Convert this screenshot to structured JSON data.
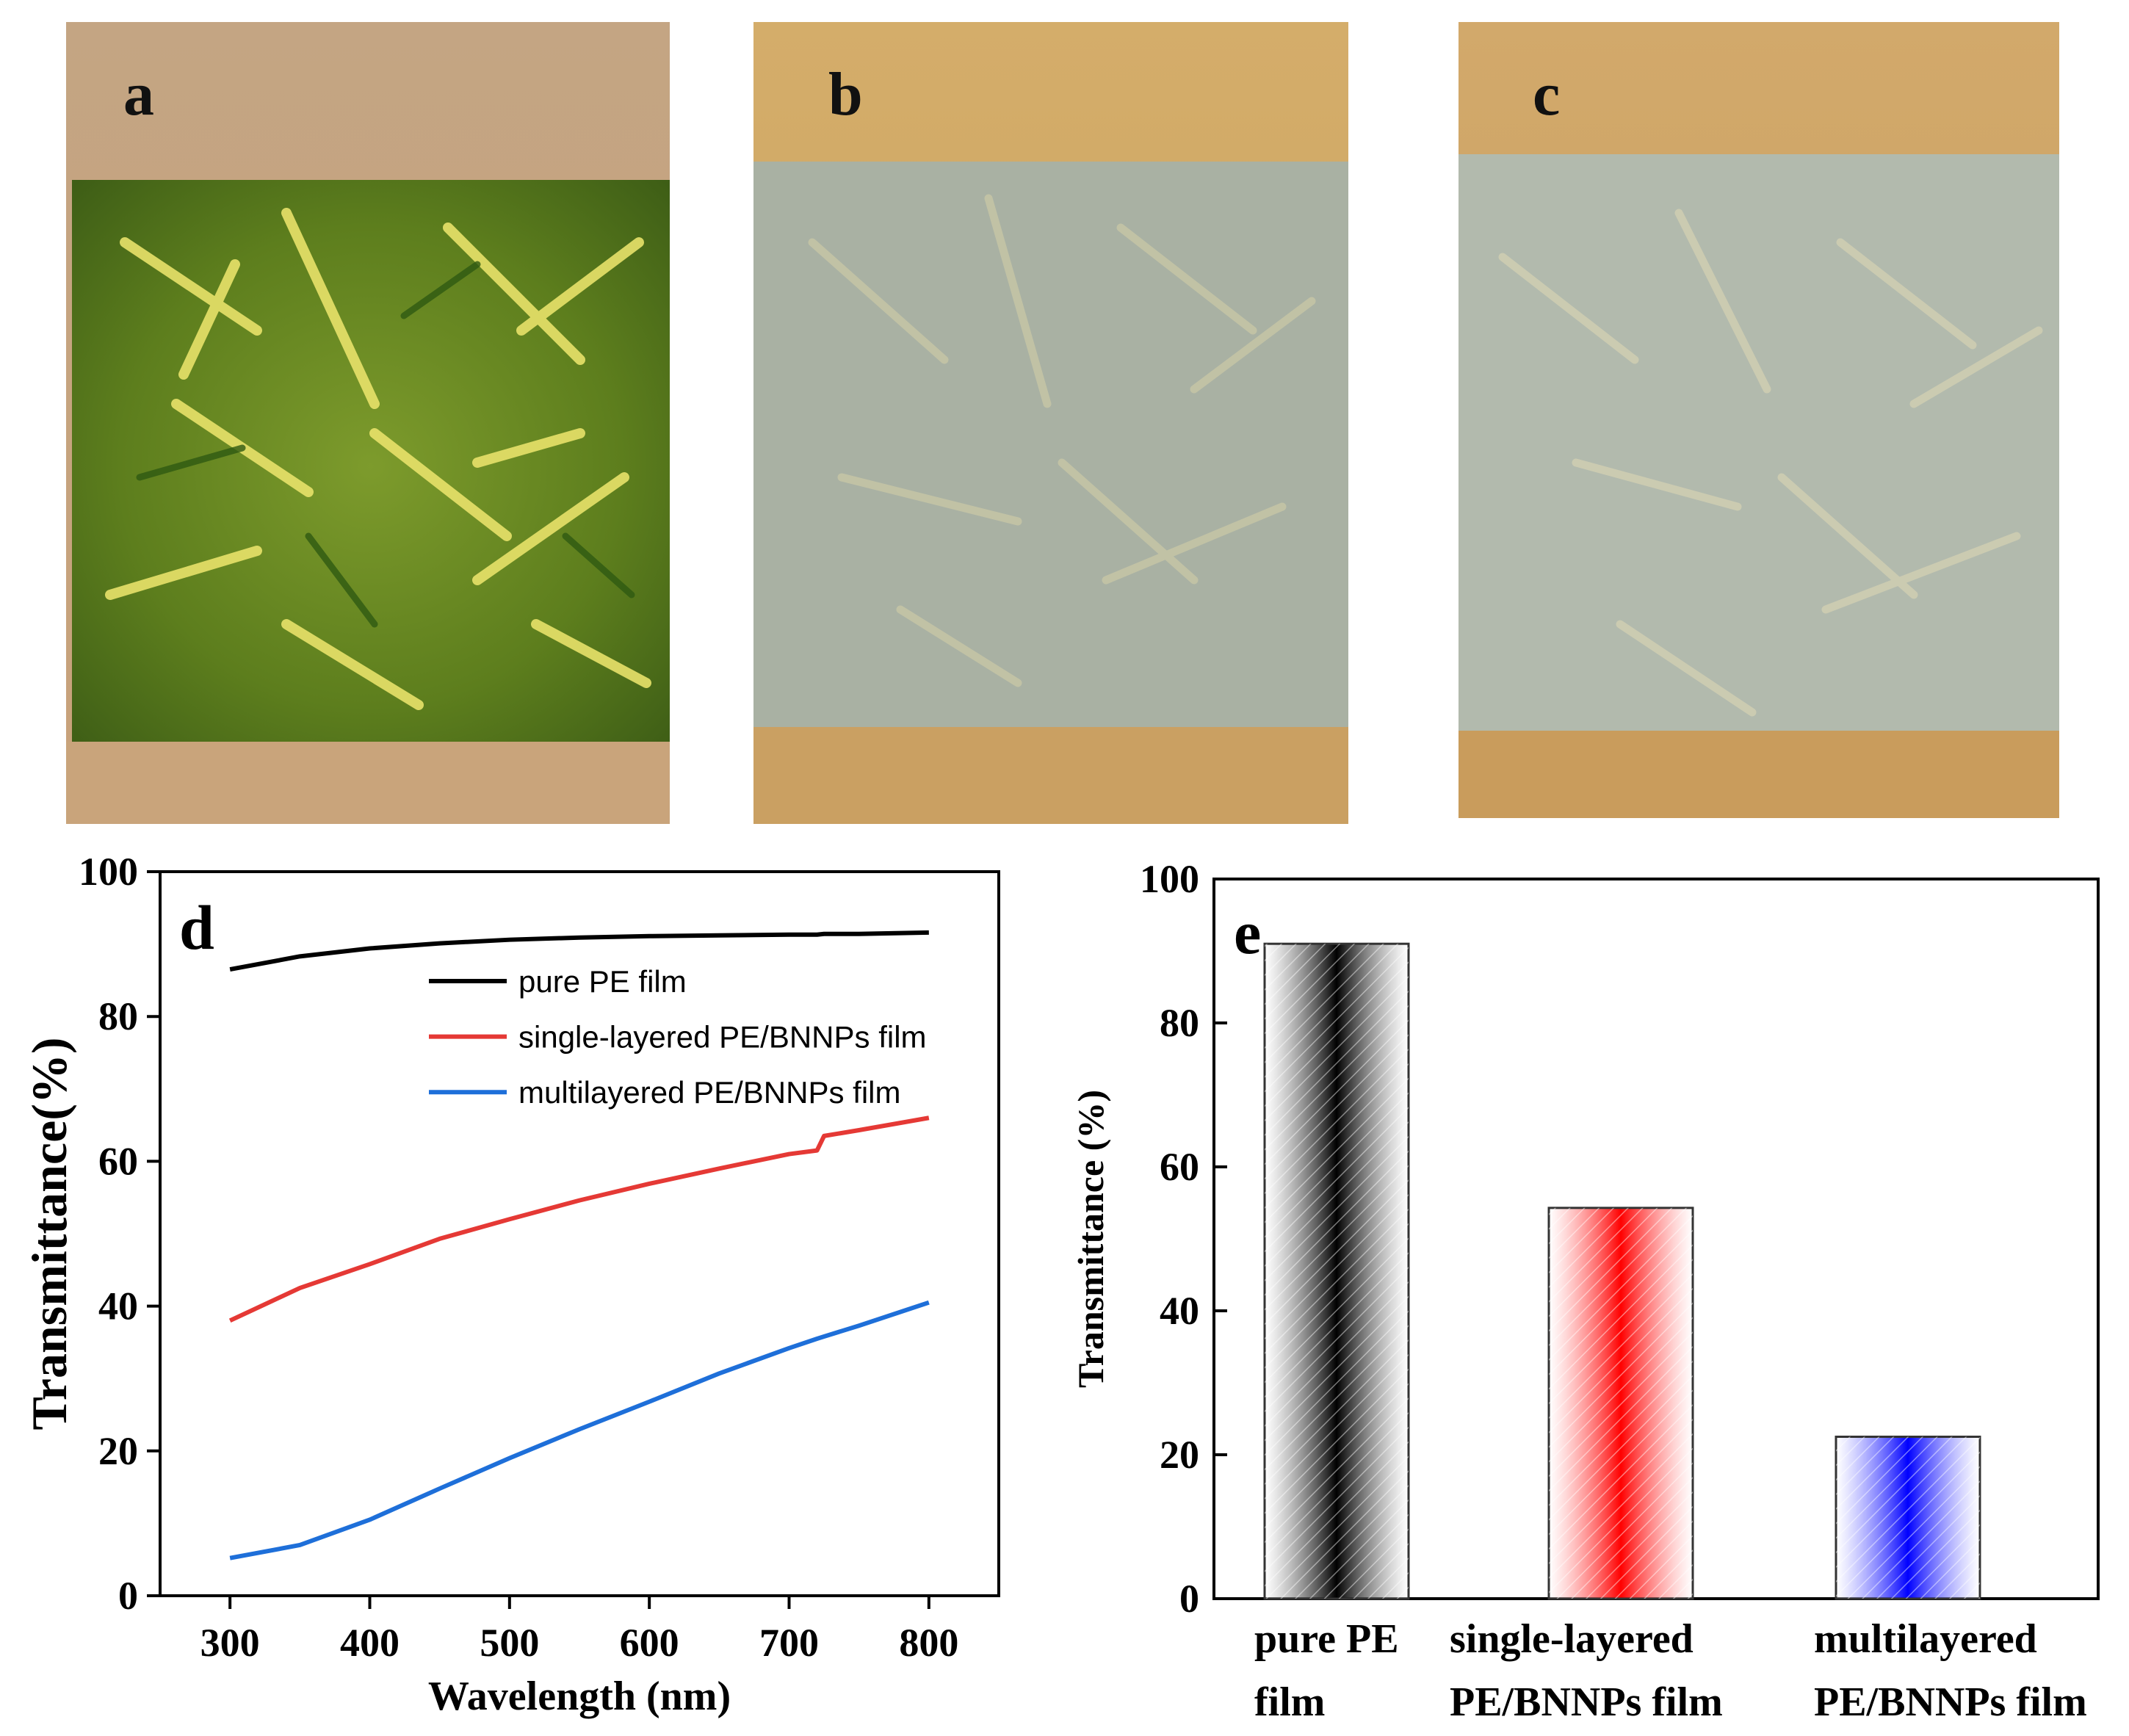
{
  "panels": [
    {
      "label": "a",
      "description_fill": "#c9a97c"
    },
    {
      "label": "b",
      "description_fill": "#c9a97c"
    },
    {
      "label": "c",
      "description_fill": "#c9a97c"
    }
  ],
  "chart_data": [
    {
      "panel": "d",
      "type": "line",
      "xlabel": "Wavelength (nm)",
      "ylabel": "Transmittance(%)",
      "xlim": [
        250,
        850
      ],
      "ylim": [
        0,
        100
      ],
      "xticks": [
        300,
        400,
        500,
        600,
        700,
        800
      ],
      "yticks": [
        0,
        20,
        40,
        60,
        80,
        100
      ],
      "x": [
        300,
        350,
        400,
        450,
        500,
        550,
        600,
        650,
        700,
        720,
        725,
        750,
        800
      ],
      "series": [
        {
          "name": "pure PE film",
          "color": "#000000",
          "values": [
            86.5,
            88.3,
            89.4,
            90.1,
            90.6,
            90.9,
            91.1,
            91.2,
            91.3,
            91.3,
            91.4,
            91.4,
            91.6
          ]
        },
        {
          "name": "single-layered PE/BNNPs film",
          "color": "#e53935",
          "values": [
            38.0,
            42.5,
            45.8,
            49.3,
            52.0,
            54.6,
            56.9,
            59.0,
            61.0,
            61.5,
            63.5,
            64.3,
            66.0
          ]
        },
        {
          "name": "multilayered PE/BNNPs film",
          "color": "#1e6fd9",
          "values": [
            5.2,
            7.0,
            10.5,
            14.8,
            19.0,
            23.0,
            26.8,
            30.7,
            34.2,
            35.5,
            35.8,
            37.3,
            40.5
          ]
        }
      ],
      "legend_position": "top-center"
    },
    {
      "panel": "e",
      "type": "bar",
      "ylabel": "Transmittance (%)",
      "ylim": [
        0,
        100
      ],
      "yticks": [
        0,
        20,
        40,
        60,
        80,
        100
      ],
      "categories": [
        "pure PE film",
        "single-layered PE/BNNPs film",
        "multilayered PE/BNNPs film"
      ],
      "category_lines": [
        [
          "pure PE",
          "film"
        ],
        [
          "single-layered",
          "PE/BNNPs film"
        ],
        [
          "multilayered",
          "PE/BNNPs film"
        ]
      ],
      "values": [
        91,
        54.3,
        22.5
      ],
      "colors": [
        "#000000",
        "#ff0000",
        "#0000ff"
      ]
    }
  ]
}
